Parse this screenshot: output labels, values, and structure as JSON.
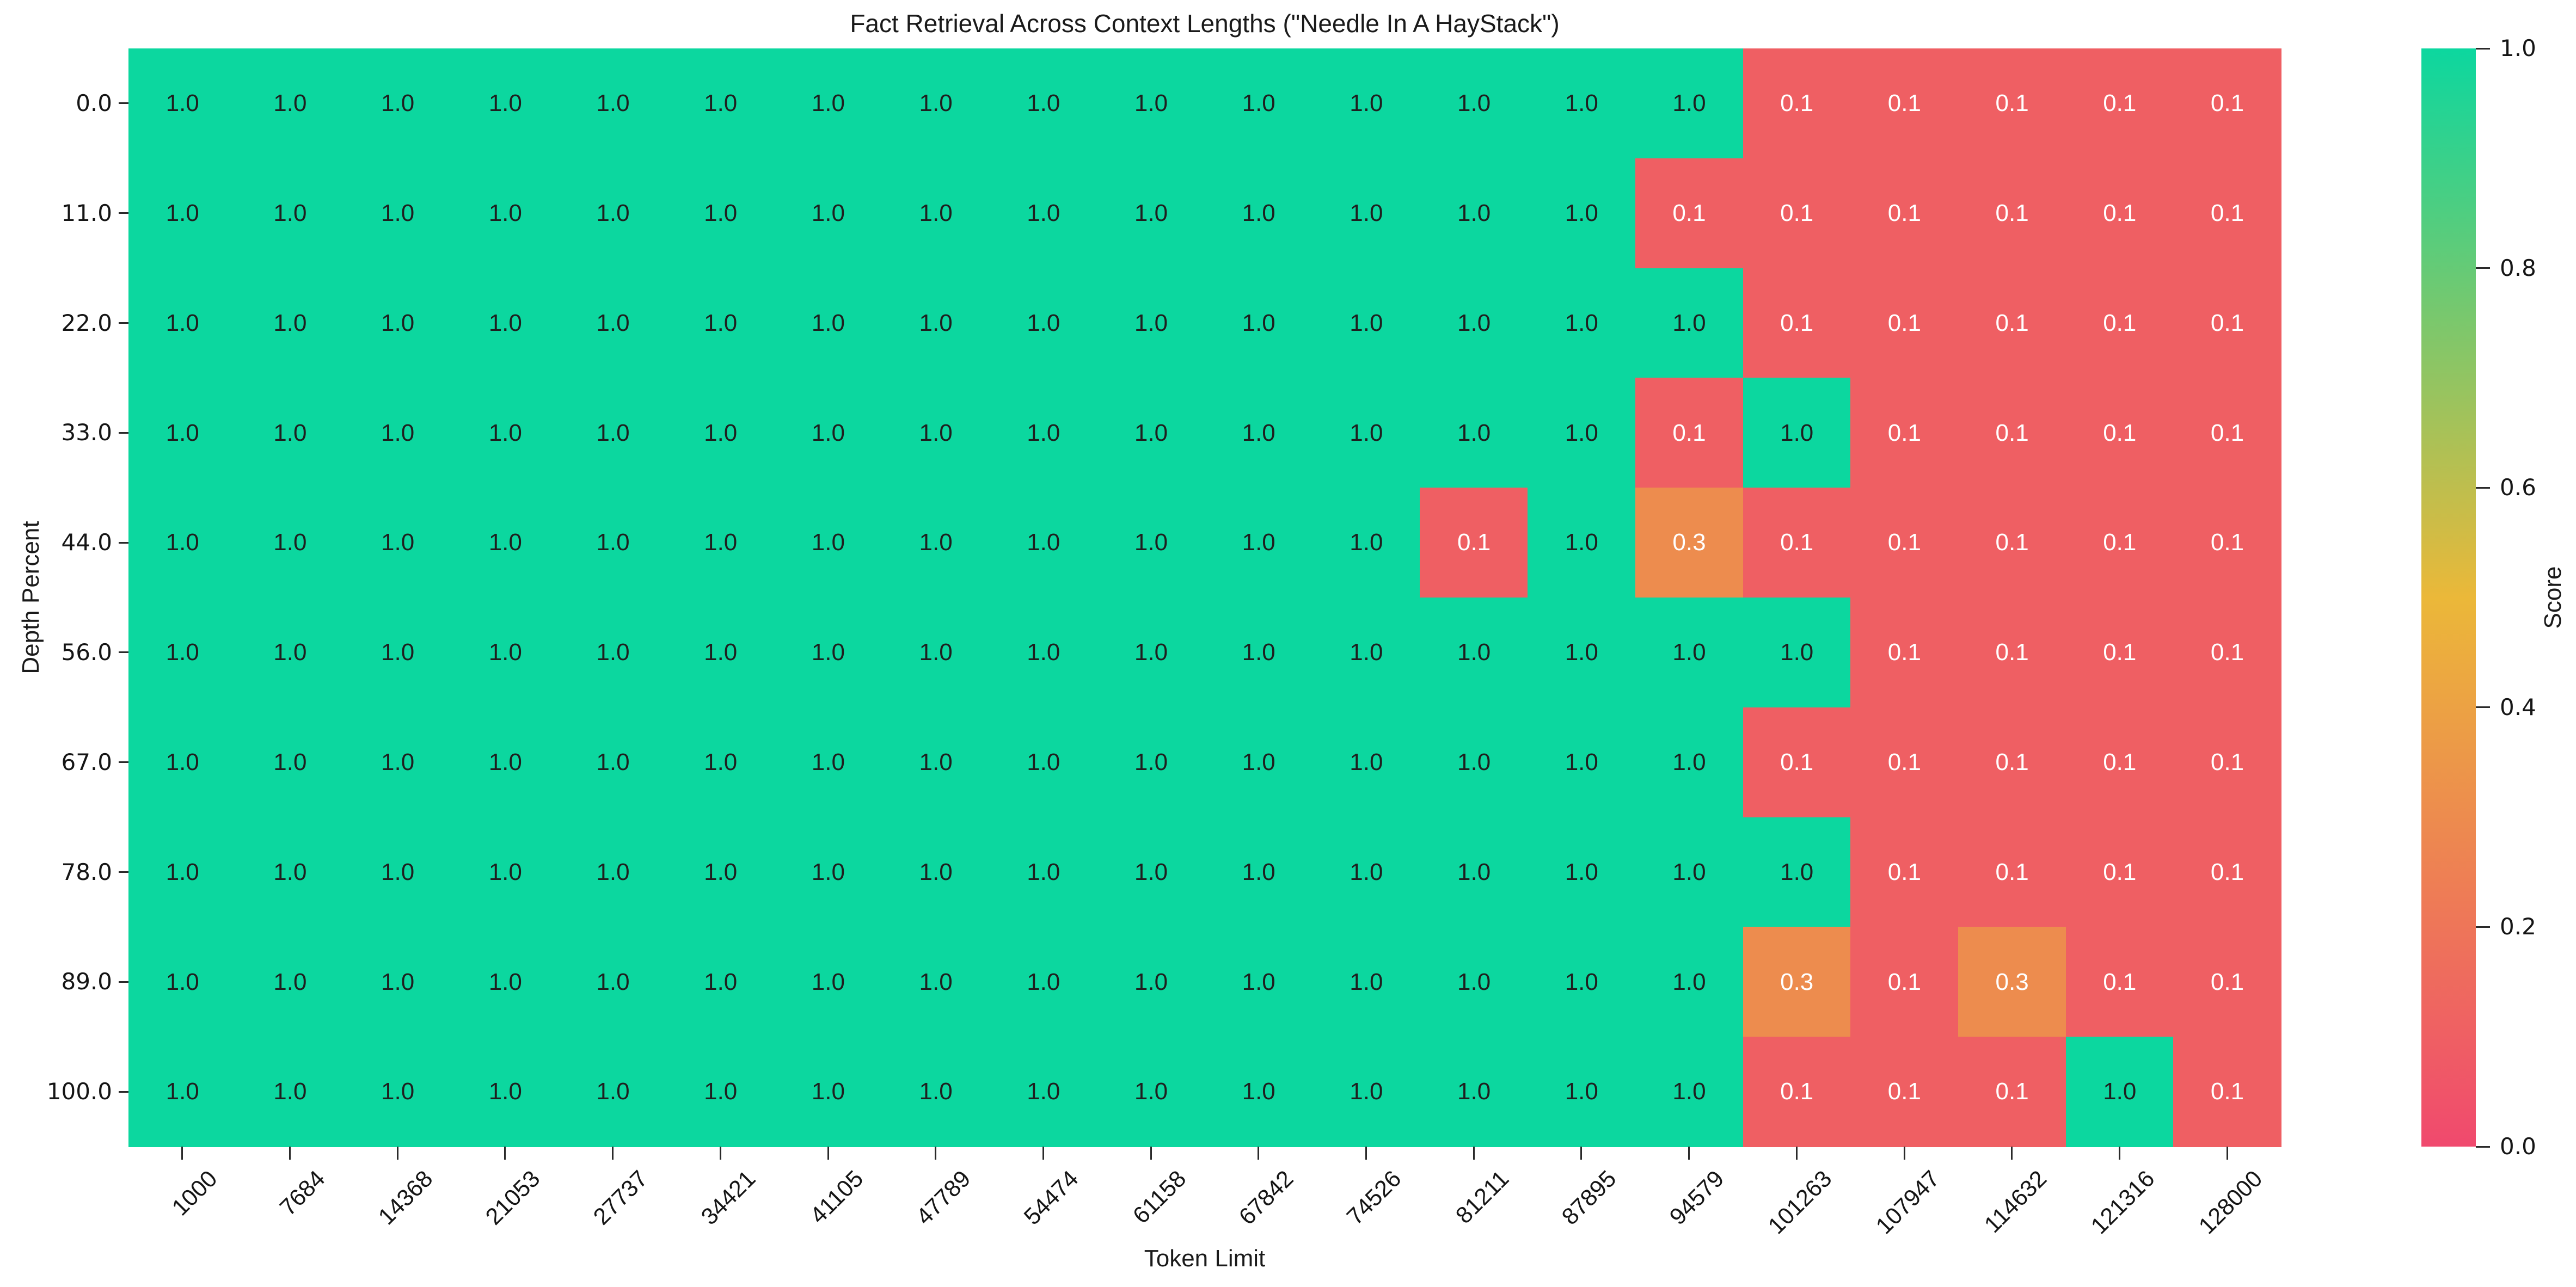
{
  "title": "Fact Retrieval Across Context Lengths (\"Needle In A HayStack\")",
  "chart_data": {
    "type": "heatmap",
    "title": "Fact Retrieval Across Context Lengths (\"Needle In A HayStack\")",
    "xlabel": "Token Limit",
    "ylabel": "Depth Percent",
    "colorbar_label": "Score",
    "colorbar_ticks": [
      1.0,
      0.8,
      0.6,
      0.4,
      0.2,
      0.0
    ],
    "value_range": [
      0.0,
      1.0
    ],
    "grid": false,
    "legend_position": "right-colorbar",
    "colormap": {
      "stops": [
        [
          0.0,
          "#F0496E"
        ],
        [
          0.5,
          "#EBB839"
        ],
        [
          1.0,
          "#0CD79F"
        ]
      ],
      "color_green": "#0CD79F",
      "color_red": "#EF5F63",
      "color_orange": "#ED8C4E"
    },
    "cell_text_dark": "#1f1f1f",
    "cell_text_light": "#ffffff",
    "x_categories": [
      "1000",
      "7684",
      "14368",
      "21053",
      "27737",
      "34421",
      "41105",
      "47789",
      "54474",
      "61158",
      "67842",
      "74526",
      "81211",
      "87895",
      "94579",
      "101263",
      "107947",
      "114632",
      "121316",
      "128000"
    ],
    "y_categories": [
      "0.0",
      "11.0",
      "22.0",
      "33.0",
      "44.0",
      "56.0",
      "67.0",
      "78.0",
      "89.0",
      "100.0"
    ],
    "rows": [
      [
        1.0,
        1.0,
        1.0,
        1.0,
        1.0,
        1.0,
        1.0,
        1.0,
        1.0,
        1.0,
        1.0,
        1.0,
        1.0,
        1.0,
        1.0,
        0.1,
        0.1,
        0.1,
        0.1,
        0.1
      ],
      [
        1.0,
        1.0,
        1.0,
        1.0,
        1.0,
        1.0,
        1.0,
        1.0,
        1.0,
        1.0,
        1.0,
        1.0,
        1.0,
        1.0,
        0.1,
        0.1,
        0.1,
        0.1,
        0.1,
        0.1
      ],
      [
        1.0,
        1.0,
        1.0,
        1.0,
        1.0,
        1.0,
        1.0,
        1.0,
        1.0,
        1.0,
        1.0,
        1.0,
        1.0,
        1.0,
        1.0,
        0.1,
        0.1,
        0.1,
        0.1,
        0.1
      ],
      [
        1.0,
        1.0,
        1.0,
        1.0,
        1.0,
        1.0,
        1.0,
        1.0,
        1.0,
        1.0,
        1.0,
        1.0,
        1.0,
        1.0,
        0.1,
        1.0,
        0.1,
        0.1,
        0.1,
        0.1
      ],
      [
        1.0,
        1.0,
        1.0,
        1.0,
        1.0,
        1.0,
        1.0,
        1.0,
        1.0,
        1.0,
        1.0,
        1.0,
        0.1,
        1.0,
        0.3,
        0.1,
        0.1,
        0.1,
        0.1,
        0.1
      ],
      [
        1.0,
        1.0,
        1.0,
        1.0,
        1.0,
        1.0,
        1.0,
        1.0,
        1.0,
        1.0,
        1.0,
        1.0,
        1.0,
        1.0,
        1.0,
        1.0,
        0.1,
        0.1,
        0.1,
        0.1
      ],
      [
        1.0,
        1.0,
        1.0,
        1.0,
        1.0,
        1.0,
        1.0,
        1.0,
        1.0,
        1.0,
        1.0,
        1.0,
        1.0,
        1.0,
        1.0,
        0.1,
        0.1,
        0.1,
        0.1,
        0.1
      ],
      [
        1.0,
        1.0,
        1.0,
        1.0,
        1.0,
        1.0,
        1.0,
        1.0,
        1.0,
        1.0,
        1.0,
        1.0,
        1.0,
        1.0,
        1.0,
        1.0,
        0.1,
        0.1,
        0.1,
        0.1
      ],
      [
        1.0,
        1.0,
        1.0,
        1.0,
        1.0,
        1.0,
        1.0,
        1.0,
        1.0,
        1.0,
        1.0,
        1.0,
        1.0,
        1.0,
        1.0,
        0.3,
        0.1,
        0.3,
        0.1,
        0.1
      ],
      [
        1.0,
        1.0,
        1.0,
        1.0,
        1.0,
        1.0,
        1.0,
        1.0,
        1.0,
        1.0,
        1.0,
        1.0,
        1.0,
        1.0,
        1.0,
        0.1,
        0.1,
        0.1,
        1.0,
        0.1
      ]
    ],
    "value_format_decimals": 1
  }
}
